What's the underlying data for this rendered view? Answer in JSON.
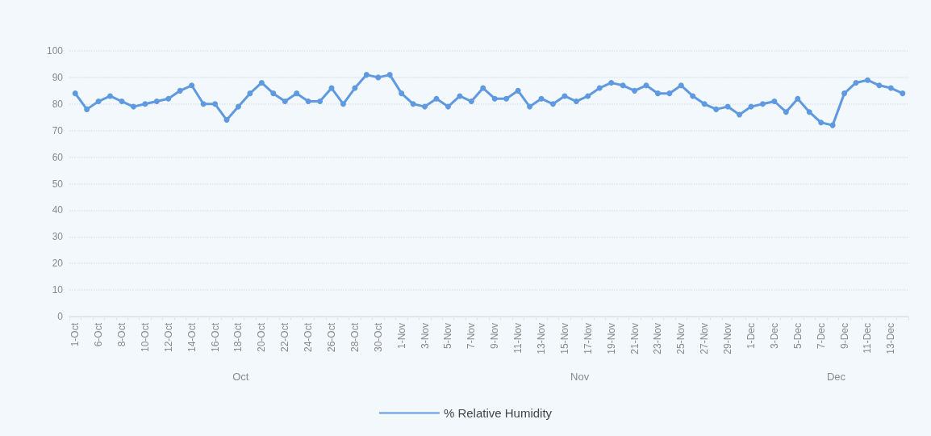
{
  "chart_data": {
    "type": "line",
    "categories": [
      "1-Oct",
      null,
      "6-Oct",
      null,
      "8-Oct",
      null,
      "10-Oct",
      null,
      "12-Oct",
      null,
      "14-Oct",
      null,
      "16-Oct",
      null,
      "18-Oct",
      null,
      "20-Oct",
      null,
      "22-Oct",
      null,
      "24-Oct",
      null,
      "26-Oct",
      null,
      "28-Oct",
      null,
      "30-Oct",
      null,
      "1-Nov",
      null,
      "3-Nov",
      null,
      "5-Nov",
      null,
      "7-Nov",
      null,
      "9-Nov",
      null,
      "11-Nov",
      null,
      "13-Nov",
      null,
      "15-Nov",
      null,
      "17-Nov",
      null,
      "19-Nov",
      null,
      "21-Nov",
      null,
      "23-Nov",
      null,
      "25-Nov",
      null,
      "27-Nov",
      null,
      "29-Nov",
      null,
      "1-Dec",
      null,
      "3-Dec",
      null,
      "5-Dec",
      null,
      "7-Dec",
      null,
      "9-Dec",
      null,
      "11-Dec",
      null,
      "13-Dec",
      null
    ],
    "series": [
      {
        "name": "% Relative Humidity",
        "color": "#5f9ae0",
        "values": [
          84,
          78,
          81,
          83,
          81,
          79,
          80,
          81,
          82,
          85,
          87,
          80,
          80,
          74,
          79,
          84,
          88,
          84,
          81,
          84,
          81,
          81,
          86,
          80,
          86,
          91,
          90,
          91,
          84,
          80,
          79,
          82,
          79,
          83,
          81,
          86,
          82,
          82,
          85,
          79,
          82,
          80,
          83,
          81,
          83,
          86,
          88,
          87,
          85,
          87,
          84,
          84,
          87,
          83,
          80,
          78,
          79,
          76,
          79,
          80,
          81,
          77,
          82,
          77,
          73,
          72,
          84,
          88,
          89,
          87,
          86,
          84
        ]
      }
    ],
    "ylim": [
      0,
      100
    ],
    "yticks": [
      0,
      10,
      20,
      30,
      40,
      50,
      60,
      70,
      80,
      90,
      100
    ],
    "grid": "y",
    "legend": "bottom",
    "marker": "circle",
    "line_style": "solid",
    "annotations": [
      "Oct",
      "Nov",
      "Dec"
    ]
  }
}
